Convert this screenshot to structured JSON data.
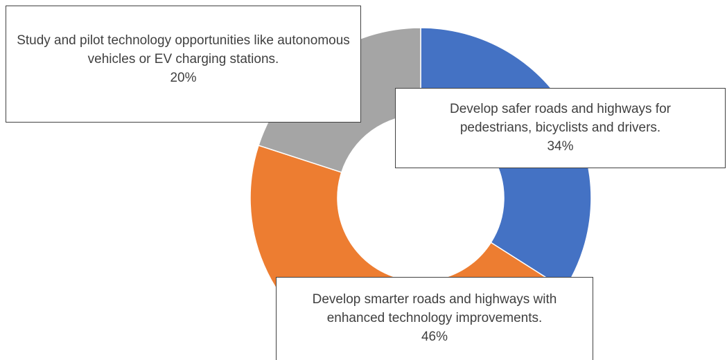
{
  "chart_data": {
    "type": "donut",
    "categories": [
      "Develop safer roads and highways for pedestrians, bicyclists and drivers.",
      "Develop smarter roads and highways with enhanced technology improvements.",
      "Study and pilot technology opportunities like autonomous vehicles or EV charging stations."
    ],
    "values": [
      34,
      46,
      20
    ],
    "value_labels": [
      "34%",
      "46%",
      "20%"
    ],
    "colors": [
      "#4472c4",
      "#ed7d31",
      "#a5a5a5"
    ]
  }
}
